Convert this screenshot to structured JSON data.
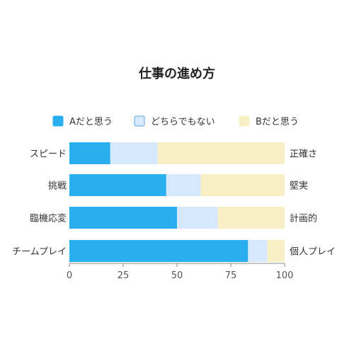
{
  "chart_data": {
    "type": "bar",
    "orientation": "horizontal",
    "stacked": true,
    "title": "仕事の進め方",
    "legend_position": "top",
    "categories": [
      "スピード",
      "挑戦",
      "臨機応変",
      "チームプレイ"
    ],
    "right_labels": [
      "正確さ",
      "堅実",
      "計画的",
      "個人プレイ"
    ],
    "series": [
      {
        "name": "Aだと思う",
        "color": "#29aff0",
        "stroke": "#29aff0",
        "values": [
          19,
          45,
          50,
          83
        ]
      },
      {
        "name": "どちらでもない",
        "color": "#d6e8fb",
        "stroke": "#5aa9e6",
        "values": [
          22,
          16,
          19,
          9
        ]
      },
      {
        "name": "Bだと思う",
        "color": "#f9efc4",
        "stroke": "#f9efc4",
        "values": [
          59,
          39,
          31,
          8
        ]
      }
    ],
    "xlim": [
      0,
      100
    ],
    "xticks": [
      0,
      25,
      50,
      75,
      100
    ],
    "grid": false
  }
}
